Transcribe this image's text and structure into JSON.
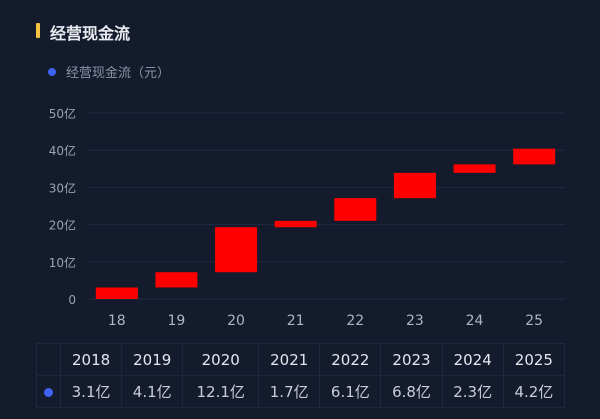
{
  "header": {
    "title": "经营现金流",
    "accent_color": "#f5c343"
  },
  "legend": {
    "label": "经营现金流（元）",
    "color": "#3f63f0"
  },
  "chart_data": {
    "type": "bar",
    "subtype": "waterfall",
    "title": "经营现金流",
    "legend": [
      "经营现金流（元）"
    ],
    "categories": [
      "18",
      "19",
      "20",
      "21",
      "22",
      "23",
      "24",
      "25"
    ],
    "values": [
      3.1,
      4.1,
      12.1,
      1.7,
      6.1,
      6.8,
      2.3,
      4.2
    ],
    "bar_ranges": [
      [
        0,
        3.1
      ],
      [
        3.1,
        7.2
      ],
      [
        7.2,
        19.3
      ],
      [
        19.3,
        21.0
      ],
      [
        21.0,
        27.1
      ],
      [
        27.1,
        33.9
      ],
      [
        33.9,
        36.2
      ],
      [
        36.2,
        40.4
      ]
    ],
    "unit": "亿",
    "yticks": [
      "0",
      "10亿",
      "20亿",
      "30亿",
      "40亿",
      "50亿"
    ],
    "ylim": [
      0,
      50
    ],
    "grid": true,
    "bar_color": "#ff0000"
  },
  "table": {
    "headers": [
      "2018",
      "2019",
      "2020",
      "2021",
      "2022",
      "2023",
      "2024",
      "2025"
    ],
    "values": [
      "3.1亿",
      "4.1亿",
      "12.1亿",
      "1.7亿",
      "6.1亿",
      "6.8亿",
      "2.3亿",
      "4.2亿"
    ]
  }
}
